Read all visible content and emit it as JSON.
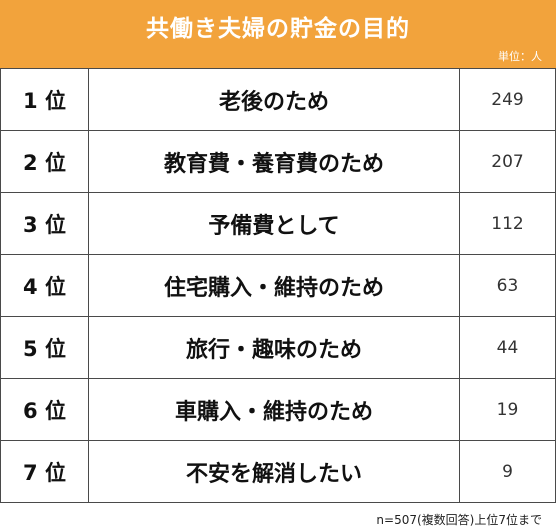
{
  "title": "共働き夫婦の貯金の目的",
  "unit": "単位：人",
  "footnote": "n=507(複数回答)上位7位まで",
  "chart_data": {
    "type": "table",
    "title": "共働き夫婦の貯金の目的",
    "rows": [
      {
        "rank": "1 位",
        "label": "老後のため",
        "value": "249"
      },
      {
        "rank": "2 位",
        "label": "教育費・養育費のため",
        "value": "207"
      },
      {
        "rank": "3 位",
        "label": "予備費として",
        "value": "112"
      },
      {
        "rank": "4 位",
        "label": "住宅購入・維持のため",
        "value": "63"
      },
      {
        "rank": "5 位",
        "label": "旅行・趣味のため",
        "value": "44"
      },
      {
        "rank": "6 位",
        "label": "車購入・維持のため",
        "value": "19"
      },
      {
        "rank": "7 位",
        "label": "不安を解消したい",
        "value": "9"
      }
    ]
  },
  "colors": {
    "header": "#f2a33c",
    "border": "#4a4a4a"
  }
}
